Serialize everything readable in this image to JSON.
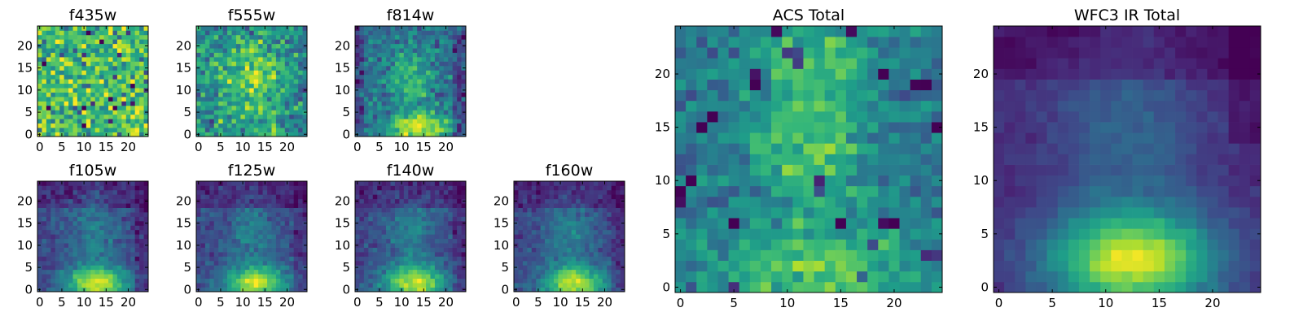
{
  "chart_data": [
    {
      "type": "heatmap",
      "title": "f435w",
      "xticks": [
        0,
        5,
        10,
        15,
        20
      ],
      "yticks": [
        0,
        5,
        10,
        15,
        20
      ],
      "xlim": [
        0,
        24
      ],
      "ylim": [
        0,
        24
      ],
      "colormap": "viridis",
      "pattern": "noise",
      "texture": 1.6
    },
    {
      "type": "heatmap",
      "title": "f555w",
      "xticks": [
        0,
        5,
        10,
        15,
        20
      ],
      "yticks": [
        0,
        5,
        10,
        15,
        20
      ],
      "xlim": [
        0,
        24
      ],
      "ylim": [
        0,
        24
      ],
      "colormap": "viridis",
      "pattern": "center-blob",
      "texture": 1.3
    },
    {
      "type": "heatmap",
      "title": "f814w",
      "xticks": [
        0,
        5,
        10,
        15,
        20
      ],
      "yticks": [
        0,
        5,
        10,
        15,
        20
      ],
      "xlim": [
        0,
        24
      ],
      "ylim": [
        0,
        24
      ],
      "colormap": "viridis",
      "pattern": "center-plus-bottom",
      "texture": 1.0
    },
    {
      "type": "heatmap",
      "title": "f105w",
      "xticks": [
        0,
        5,
        10,
        15,
        20
      ],
      "yticks": [
        0,
        5,
        10,
        15,
        20
      ],
      "xlim": [
        0,
        24
      ],
      "ylim": [
        0,
        24
      ],
      "colormap": "viridis",
      "pattern": "bottom-bright",
      "texture": 0.6
    },
    {
      "type": "heatmap",
      "title": "f125w",
      "xticks": [
        0,
        5,
        10,
        15,
        20
      ],
      "yticks": [
        0,
        5,
        10,
        15,
        20
      ],
      "xlim": [
        0,
        24
      ],
      "ylim": [
        0,
        24
      ],
      "colormap": "viridis",
      "pattern": "bottom-bright",
      "texture": 0.55
    },
    {
      "type": "heatmap",
      "title": "f140w",
      "xticks": [
        0,
        5,
        10,
        15,
        20
      ],
      "yticks": [
        0,
        5,
        10,
        15,
        20
      ],
      "xlim": [
        0,
        24
      ],
      "ylim": [
        0,
        24
      ],
      "colormap": "viridis",
      "pattern": "bottom-bright",
      "texture": 0.55
    },
    {
      "type": "heatmap",
      "title": "f160w",
      "xticks": [
        0,
        5,
        10,
        15,
        20
      ],
      "yticks": [
        0,
        5,
        10,
        15,
        20
      ],
      "xlim": [
        0,
        24
      ],
      "ylim": [
        0,
        24
      ],
      "colormap": "viridis",
      "pattern": "bottom-bright",
      "texture": 0.5
    },
    {
      "type": "heatmap",
      "title": "ACS Total",
      "xticks": [
        0,
        5,
        10,
        15,
        20
      ],
      "yticks": [
        0,
        5,
        10,
        15,
        20
      ],
      "xlim": [
        0,
        24
      ],
      "ylim": [
        0,
        24
      ],
      "colormap": "viridis",
      "pattern": "acs-total",
      "texture": 0.8
    },
    {
      "type": "heatmap",
      "title": "WFC3 IR Total",
      "xticks": [
        0,
        5,
        10,
        15,
        20
      ],
      "yticks": [
        0,
        5,
        10,
        15,
        20
      ],
      "xlim": [
        0,
        24
      ],
      "ylim": [
        0,
        24
      ],
      "colormap": "viridis",
      "pattern": "ir-total",
      "texture": 0.25
    }
  ]
}
